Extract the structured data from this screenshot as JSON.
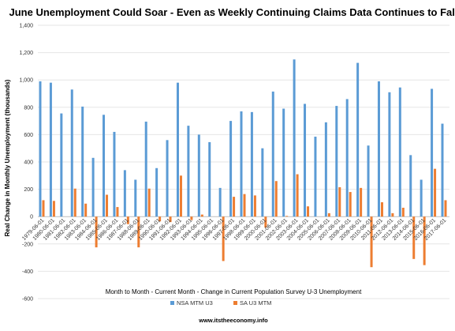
{
  "chart_data": {
    "type": "bar",
    "title": "June Unemployment Could Soar - Even as Weekly Continuing Claims Data Continues to Fall",
    "xlabel": "Month to Month - Current Month - Change in Current Population Survey U-3 Unemployment",
    "ylabel": "Real Change in Monthly Unemployment (thousands)",
    "ylim": [
      -600,
      1400
    ],
    "yticks": [
      "-600",
      "-400",
      "-200",
      "0",
      "200",
      "400",
      "600",
      "800",
      "1,000",
      "1,200",
      "1,400"
    ],
    "ytick_values": [
      -600,
      -400,
      -200,
      0,
      200,
      400,
      600,
      800,
      1000,
      1200,
      1400
    ],
    "grid": true,
    "legend_position": "bottom",
    "categories": [
      "1979-06-01",
      "1980-06-01",
      "1981-06-01",
      "1982-06-01",
      "1983-06-01",
      "1984-06-01",
      "1985-06-01",
      "1986-06-01",
      "1987-06-01",
      "1988-06-01",
      "1989-06-01",
      "1990-06-01",
      "1991-06-01",
      "1992-06-01",
      "1993-06-01",
      "1994-06-01",
      "1995-06-01",
      "1996-06-01",
      "1997-06-01",
      "1998-06-01",
      "1999-06-01",
      "2000-06-01",
      "2001-06-01",
      "2002-06-01",
      "2003-06-01",
      "2004-06-01",
      "2005-06-01",
      "2006-06-01",
      "2007-06-01",
      "2008-06-01",
      "2009-06-01",
      "2010-06-01",
      "2011-06-01",
      "2012-06-01",
      "2013-06-01",
      "2014-06-01",
      "2015-06-01",
      "2016-06-01",
      "2017-06-01"
    ],
    "series": [
      {
        "name": "NSA MTM U3",
        "color": "#5b9bd5",
        "values": [
          990,
          980,
          755,
          930,
          805,
          430,
          745,
          620,
          340,
          270,
          695,
          355,
          560,
          980,
          665,
          600,
          545,
          210,
          700,
          770,
          765,
          500,
          915,
          790,
          1150,
          825,
          585,
          690,
          810,
          860,
          1125,
          520,
          990,
          910,
          945,
          450,
          270,
          935,
          680
        ]
      },
      {
        "name": "SA U3 MTM",
        "color": "#ed7d31",
        "values": [
          120,
          115,
          0,
          205,
          95,
          -225,
          160,
          70,
          -55,
          -225,
          205,
          -35,
          -40,
          300,
          -25,
          15,
          0,
          -325,
          145,
          165,
          155,
          -80,
          260,
          5,
          310,
          75,
          0,
          25,
          215,
          180,
          210,
          -370,
          105,
          25,
          65,
          -310,
          -355,
          350,
          120
        ]
      }
    ]
  },
  "source_text": "www.itstheeconomy.info"
}
